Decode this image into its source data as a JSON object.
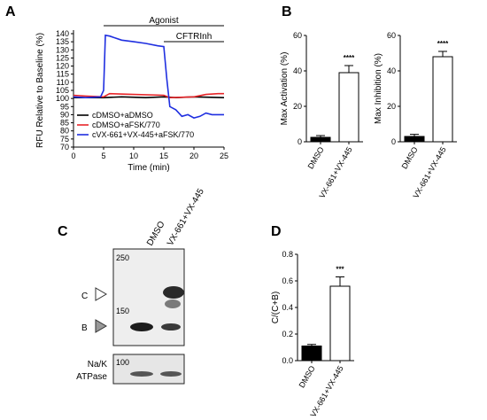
{
  "panels": {
    "a": "A",
    "b": "B",
    "c": "C",
    "d": "D"
  },
  "chart_data": [
    {
      "panel": "A",
      "type": "line",
      "xlabel": "Time (min)",
      "ylabel": "RFU Relative to Baseline (%)",
      "xlim": [
        0,
        25
      ],
      "ylim": [
        70,
        140
      ],
      "xticks": [
        0,
        5,
        10,
        15,
        20,
        25
      ],
      "yticks": [
        70,
        75,
        80,
        85,
        90,
        95,
        100,
        105,
        110,
        115,
        120,
        125,
        130,
        135,
        140
      ],
      "grid": false,
      "legend": "bottom-left",
      "annotations": [
        {
          "text": "Agonist",
          "x_start": 5,
          "x_end": 25
        },
        {
          "text": "CFTRInh",
          "x_start": 15,
          "x_end": 25
        }
      ],
      "series": [
        {
          "name": "cDMSO+aDMSO",
          "color": "#000000",
          "x": [
            0,
            2,
            5,
            8,
            12,
            15,
            17,
            20,
            25
          ],
          "y": [
            100.5,
            100.5,
            100.5,
            101,
            100.5,
            101,
            100.5,
            101,
            100.5
          ]
        },
        {
          "name": "cDMSO+aFSK/770",
          "color": "#e8262a",
          "x": [
            0,
            2,
            5,
            6,
            10,
            15,
            16,
            20,
            22,
            24,
            25
          ],
          "y": [
            102,
            101.5,
            101,
            103,
            102.5,
            102,
            100.5,
            101,
            102.5,
            103,
            103
          ]
        },
        {
          "name": "cVX-661+VX-445+aFSK/770",
          "color": "#1f2fe0",
          "x": [
            0,
            2,
            4.5,
            5,
            5.3,
            6,
            8,
            10,
            12,
            14,
            15,
            15.5,
            16,
            17,
            18,
            19,
            20,
            21,
            22,
            23,
            24,
            25
          ],
          "y": [
            101,
            100.5,
            101,
            105,
            139,
            138.5,
            136,
            135,
            134,
            132.5,
            132,
            112,
            95,
            93,
            89,
            90,
            88,
            89,
            91,
            90,
            90,
            90
          ]
        }
      ]
    },
    {
      "panel": "B-left",
      "type": "bar",
      "categories": [
        "DMSO",
        "VX-661+VX-445"
      ],
      "values": [
        2.5,
        39
      ],
      "errors": [
        1,
        4
      ],
      "fills": [
        "#000000",
        "#ffffff"
      ],
      "significance": [
        "",
        "****"
      ],
      "ylabel": "Max Activation (%)",
      "ylim": [
        0,
        60
      ],
      "yticks": [
        0,
        20,
        40,
        60
      ]
    },
    {
      "panel": "B-right",
      "type": "bar",
      "categories": [
        "DMSO",
        "VX-661+VX-445"
      ],
      "values": [
        3,
        48
      ],
      "errors": [
        1.2,
        3
      ],
      "fills": [
        "#000000",
        "#ffffff"
      ],
      "significance": [
        "",
        "****"
      ],
      "ylabel": "Max Inhibition (%)",
      "ylim": [
        0,
        60
      ],
      "yticks": [
        0,
        20,
        40,
        60
      ]
    },
    {
      "panel": "D",
      "type": "bar",
      "categories": [
        "DMSO",
        "VX-661+VX-445"
      ],
      "values": [
        0.11,
        0.56
      ],
      "errors": [
        0.012,
        0.07
      ],
      "fills": [
        "#000000",
        "#ffffff"
      ],
      "significance": [
        "",
        "***"
      ],
      "ylabel": "C/(C+B)",
      "ylim": [
        0,
        0.8
      ],
      "yticks": [
        "0.0",
        "0.2",
        "0.4",
        "0.6",
        "0.8"
      ]
    }
  ],
  "blot": {
    "lanes": [
      "DMSO",
      "VX-661+VX-445"
    ],
    "markers": [
      "250",
      "150",
      "100"
    ],
    "band_c": "C",
    "band_b": "B",
    "loading_line1": "Na/K",
    "loading_line2": "ATPase"
  }
}
